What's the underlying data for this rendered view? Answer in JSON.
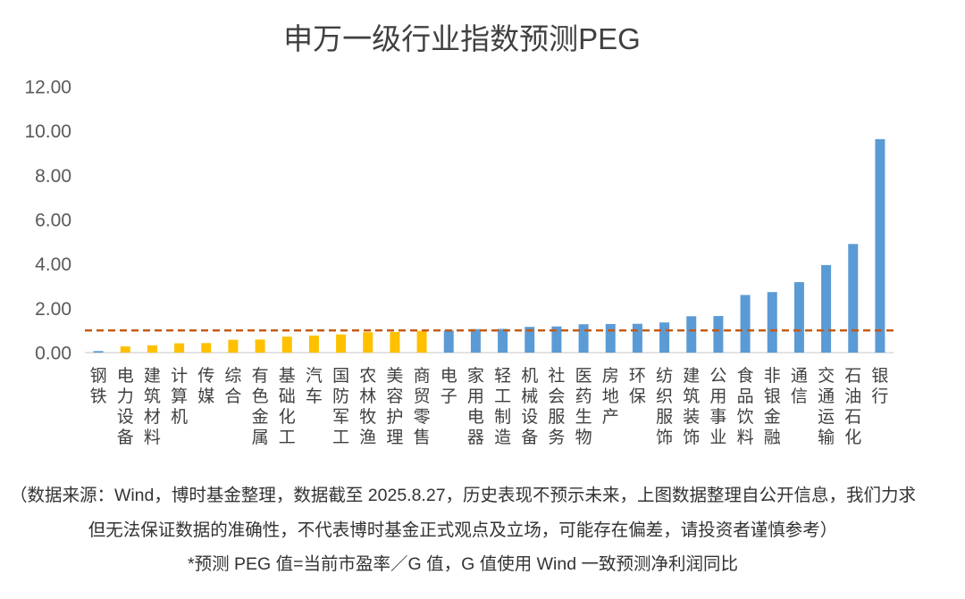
{
  "chart_data": {
    "type": "bar",
    "title": "申万一级行业指数预测PEG",
    "categories": [
      "钢铁",
      "电力设备",
      "建筑材料",
      "计算机",
      "传媒",
      "综合",
      "有色金属",
      "基础化工",
      "汽车",
      "国防军工",
      "农林牧渔",
      "美容护理",
      "商贸零售",
      "电子",
      "家用电器",
      "轻工制造",
      "机械设备",
      "社会服务",
      "医药生物",
      "房地产",
      "环保",
      "纺织服饰",
      "建筑装饰",
      "公用事业",
      "食品饮料",
      "非银金融",
      "通信",
      "交通运输",
      "石油石化",
      "银行"
    ],
    "series": [
      {
        "values": [
          0.07,
          0.28,
          0.33,
          0.42,
          0.43,
          0.58,
          0.59,
          0.72,
          0.77,
          0.82,
          0.92,
          0.93,
          0.98,
          1.0,
          1.06,
          1.07,
          1.16,
          1.18,
          1.28,
          1.29,
          1.3,
          1.36,
          1.64,
          1.65,
          2.6,
          2.73,
          3.18,
          3.95,
          4.9,
          9.63
        ]
      }
    ],
    "bar_colors": [
      "#5B9BD5",
      "#FFC000",
      "#FFC000",
      "#FFC000",
      "#FFC000",
      "#FFC000",
      "#FFC000",
      "#FFC000",
      "#FFC000",
      "#FFC000",
      "#FFC000",
      "#FFC000",
      "#FFC000",
      "#5B9BD5",
      "#5B9BD5",
      "#5B9BD5",
      "#5B9BD5",
      "#5B9BD5",
      "#5B9BD5",
      "#5B9BD5",
      "#5B9BD5",
      "#5B9BD5",
      "#5B9BD5",
      "#5B9BD5",
      "#5B9BD5",
      "#5B9BD5",
      "#5B9BD5",
      "#5B9BD5",
      "#5B9BD5",
      "#5B9BD5"
    ],
    "ylim": [
      0,
      12
    ],
    "y_ticks": [
      0,
      2,
      4,
      6,
      8,
      10,
      12
    ],
    "y_tick_labels": [
      "0.00",
      "2.00",
      "4.00",
      "6.00",
      "8.00",
      "10.00",
      "12.00"
    ],
    "reference_line": {
      "value": 1.0,
      "color": "#C55A11",
      "style": "dashed"
    },
    "axis_color": "#D9D9D9",
    "grid": false,
    "legend": "none"
  },
  "footnotes": {
    "source_line_1": "（数据来源：Wind，博时基金整理，数据截至 2025.8.27，历史表现不预示未来，上图数据整理自公开信息，我们力求",
    "source_line_2": "但无法保证数据的准确性，不代表博时基金正式观点及立场，可能存在偏差，请投资者谨慎参考）",
    "definition": "*预测 PEG 值=当前市盈率／G 值，G 值使用 Wind 一致预测净利润同比"
  }
}
